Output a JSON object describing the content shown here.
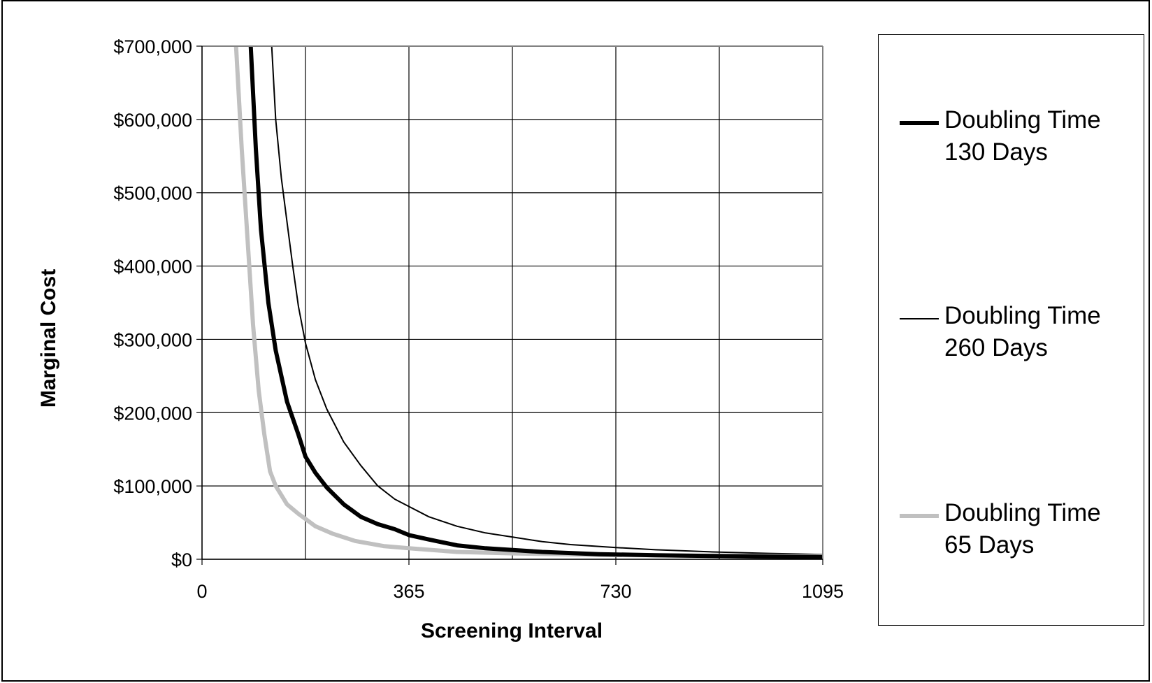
{
  "chart_data": {
    "type": "line",
    "title": "",
    "xlabel": "Screening Interval",
    "ylabel": "Marginal Cost",
    "xlim": [
      0,
      1095
    ],
    "ylim": [
      0,
      700000
    ],
    "x_ticks": [
      0,
      365,
      730,
      1095
    ],
    "x_tick_labels": [
      "0",
      "365",
      "730",
      "1095"
    ],
    "y_ticks": [
      0,
      100000,
      200000,
      300000,
      400000,
      500000,
      600000,
      700000
    ],
    "y_tick_labels": [
      "$0",
      "$100,000",
      "$200,000",
      "$300,000",
      "$400,000",
      "$500,000",
      "$600,000",
      "$700,000"
    ],
    "x_grid_lines": [
      0,
      182.5,
      365,
      547.5,
      730,
      912.5,
      1095
    ],
    "grid": true,
    "legend_position": "right",
    "series": [
      {
        "name": "Doubling Time 130 Days",
        "color": "#000000",
        "style": "thick",
        "x": [
          86,
          95,
          104,
          117,
          130,
          150,
          170,
          182.5,
          200,
          220,
          250,
          280,
          310,
          340,
          365,
          400,
          450,
          500,
          600,
          700,
          800,
          900,
          1000,
          1095
        ],
        "y": [
          700000,
          560000,
          450000,
          350000,
          285000,
          215000,
          170000,
          140000,
          118000,
          98000,
          75000,
          58000,
          48000,
          41000,
          33000,
          27000,
          19000,
          15000,
          10000,
          7000,
          5500,
          4500,
          3500,
          3000
        ]
      },
      {
        "name": "Doubling Time 260 Days",
        "color": "#000000",
        "style": "thin",
        "x": [
          123,
          130,
          140,
          150,
          160,
          170,
          182.5,
          200,
          220,
          250,
          280,
          310,
          340,
          365,
          400,
          450,
          500,
          550,
          600,
          650,
          730,
          800,
          900,
          1000,
          1095
        ],
        "y": [
          700000,
          600000,
          520000,
          460000,
          400000,
          345000,
          295000,
          245000,
          205000,
          160000,
          128000,
          100000,
          82000,
          72000,
          58000,
          45000,
          36000,
          30000,
          24000,
          20000,
          16000,
          13000,
          10000,
          8000,
          6500
        ]
      },
      {
        "name": "Doubling Time 65 Days",
        "color": "#c0c0c0",
        "style": "thick",
        "x": [
          60,
          70,
          80,
          90,
          100,
          110,
          120,
          130,
          150,
          170,
          182.5,
          200,
          230,
          270,
          320,
          365,
          450,
          550,
          700,
          850,
          1000,
          1095
        ],
        "y": [
          700000,
          560000,
          440000,
          320000,
          230000,
          170000,
          120000,
          100000,
          75000,
          62000,
          55000,
          45000,
          35000,
          25000,
          18000,
          15000,
          10000,
          8000,
          6000,
          5000,
          4500,
          4000
        ]
      }
    ]
  },
  "legend": {
    "items": [
      {
        "line1": "Doubling Time",
        "line2": "130 Days"
      },
      {
        "line1": "Doubling Time",
        "line2": "260 Days"
      },
      {
        "line1": "Doubling Time",
        "line2": "65 Days"
      }
    ]
  }
}
